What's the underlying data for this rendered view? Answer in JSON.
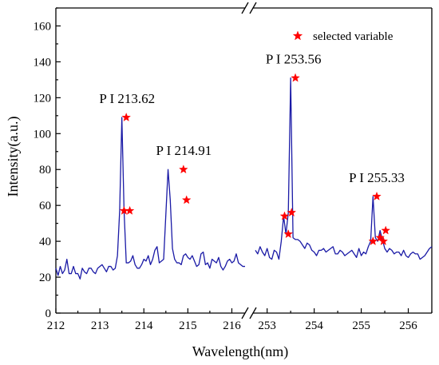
{
  "chart_data": {
    "type": "line",
    "xlabel": "Wavelength(nm)",
    "ylabel": "Intensity(a.u.)",
    "ylim": [
      0,
      170
    ],
    "y_ticks": [
      "0",
      "20",
      "40",
      "60",
      "80",
      "100",
      "120",
      "140",
      "160"
    ],
    "axis_break": true,
    "legend": {
      "label": "selected variable",
      "position": "top-right",
      "marker": "star"
    },
    "colors": {
      "line": "#1a1aa6",
      "marker": "#ff0000"
    },
    "segments": [
      {
        "xlim": [
          212,
          216.3
        ],
        "x_ticks": [
          "212",
          "213",
          "214",
          "215",
          "216"
        ],
        "x": [
          212.0,
          212.05,
          212.1,
          212.15,
          212.2,
          212.25,
          212.3,
          212.35,
          212.4,
          212.45,
          212.5,
          212.55,
          212.6,
          212.65,
          212.7,
          212.75,
          212.8,
          212.85,
          212.9,
          212.95,
          213.0,
          213.05,
          213.1,
          213.15,
          213.2,
          213.25,
          213.3,
          213.35,
          213.4,
          213.45,
          213.5,
          213.55,
          213.6,
          213.65,
          213.7,
          213.75,
          213.8,
          213.85,
          213.9,
          213.95,
          214.0,
          214.05,
          214.1,
          214.15,
          214.2,
          214.25,
          214.3,
          214.35,
          214.4,
          214.45,
          214.5,
          214.55,
          214.6,
          214.65,
          214.7,
          214.75,
          214.8,
          214.85,
          214.9,
          214.95,
          215.0,
          215.05,
          215.1,
          215.15,
          215.2,
          215.25,
          215.3,
          215.35,
          215.4,
          215.45,
          215.5,
          215.55,
          215.6,
          215.65,
          215.7,
          215.75,
          215.8,
          215.85,
          215.9,
          215.95,
          216.0,
          216.05,
          216.1,
          216.15,
          216.2,
          216.25,
          216.3
        ],
        "y": [
          25,
          21,
          26,
          22,
          24,
          30,
          22,
          22,
          26,
          22,
          22,
          19,
          25,
          23,
          22,
          25,
          25,
          23,
          22,
          25,
          26,
          27,
          25,
          23,
          26,
          26,
          24,
          25,
          32,
          57,
          109,
          57,
          28,
          28,
          29,
          32,
          27,
          25,
          25,
          27,
          30,
          29,
          32,
          27,
          30,
          35,
          37,
          28,
          29,
          30,
          55,
          80,
          63,
          36,
          30,
          28,
          28,
          27,
          32,
          33,
          31,
          30,
          32,
          29,
          26,
          27,
          33,
          34,
          27,
          28,
          25,
          30,
          29,
          28,
          31,
          26,
          24,
          26,
          29,
          30,
          28,
          29,
          33,
          28,
          27,
          26,
          26
        ]
      },
      {
        "xlim": [
          252.7,
          256.5
        ],
        "x_ticks": [
          "253",
          "254",
          "255",
          "256"
        ],
        "x": [
          252.75,
          252.8,
          252.85,
          252.9,
          252.95,
          253.0,
          253.05,
          253.1,
          253.15,
          253.2,
          253.25,
          253.3,
          253.35,
          253.4,
          253.45,
          253.5,
          253.55,
          253.6,
          253.65,
          253.7,
          253.75,
          253.8,
          253.85,
          253.9,
          253.95,
          254.0,
          254.05,
          254.1,
          254.15,
          254.2,
          254.25,
          254.3,
          254.35,
          254.4,
          254.45,
          254.5,
          254.55,
          254.6,
          254.65,
          254.7,
          254.75,
          254.8,
          254.85,
          254.9,
          254.95,
          255.0,
          255.05,
          255.1,
          255.15,
          255.2,
          255.25,
          255.3,
          255.35,
          255.4,
          255.45,
          255.5,
          255.55,
          255.6,
          255.65,
          255.7,
          255.75,
          255.8,
          255.85,
          255.9,
          255.95,
          256.0,
          256.05,
          256.1,
          256.15,
          256.2,
          256.25,
          256.3,
          256.35,
          256.4,
          256.45,
          256.5
        ],
        "y": [
          35,
          33,
          37,
          34,
          32,
          36,
          31,
          30,
          35,
          34,
          30,
          40,
          54,
          44,
          56,
          131,
          42,
          41,
          41,
          40,
          38,
          36,
          39,
          38,
          35,
          34,
          32,
          35,
          35,
          36,
          34,
          35,
          36,
          37,
          33,
          33,
          35,
          34,
          32,
          33,
          34,
          35,
          33,
          31,
          36,
          32,
          34,
          33,
          37,
          40,
          65,
          42,
          40,
          46,
          41,
          36,
          34,
          36,
          35,
          33,
          34,
          34,
          32,
          35,
          32,
          31,
          33,
          34,
          33,
          33,
          30,
          31,
          32,
          34,
          36,
          37
        ]
      }
    ],
    "selected_points": [
      {
        "x": 213.55,
        "y": 57
      },
      {
        "x": 213.6,
        "y": 109
      },
      {
        "x": 213.68,
        "y": 57
      },
      {
        "x": 214.9,
        "y": 80
      },
      {
        "x": 214.97,
        "y": 63
      },
      {
        "x": 253.37,
        "y": 54
      },
      {
        "x": 253.45,
        "y": 44
      },
      {
        "x": 253.52,
        "y": 56
      },
      {
        "x": 253.6,
        "y": 131
      },
      {
        "x": 255.25,
        "y": 40
      },
      {
        "x": 255.33,
        "y": 65
      },
      {
        "x": 255.4,
        "y": 42
      },
      {
        "x": 255.47,
        "y": 40
      },
      {
        "x": 255.52,
        "y": 46
      }
    ],
    "annotations": [
      {
        "text": "P I 213.62",
        "x": 213.62,
        "y": 109
      },
      {
        "text": "P I 214.91",
        "x": 214.91,
        "y": 80
      },
      {
        "text": "P I 253.56",
        "x": 253.56,
        "y": 131
      },
      {
        "text": "P I 255.33",
        "x": 255.33,
        "y": 65
      }
    ]
  }
}
